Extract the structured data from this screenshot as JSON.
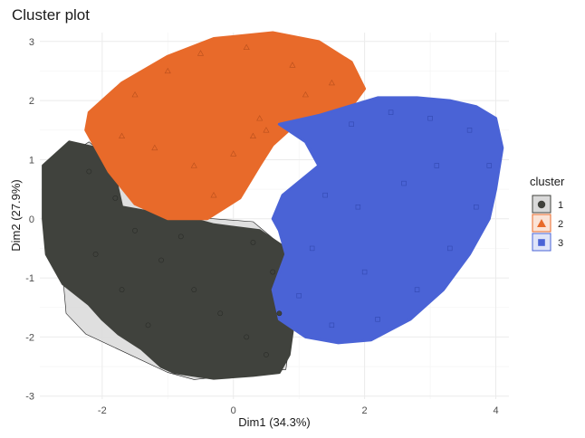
{
  "chart_data": {
    "type": "scatter",
    "title": "Cluster plot",
    "xlabel": "Dim1 (34.3%)",
    "ylabel": "Dim2 (27.9%)",
    "xlim": [
      -2.95,
      4.2
    ],
    "ylim": [
      -3.05,
      3.15
    ],
    "x_ticks": [
      -2,
      0,
      2,
      4
    ],
    "y_ticks": [
      -3,
      -2,
      -1,
      0,
      1,
      2,
      3
    ],
    "grid": true,
    "legend": {
      "title": "cluster",
      "placement": "right"
    },
    "series": [
      {
        "name": "1",
        "color": "#40423d",
        "hull_fill": "#dcdcdc",
        "marker": "circle",
        "hull": [
          [
            -2.55,
            1.05
          ],
          [
            -2.2,
            1.3
          ],
          [
            -0.9,
            0.05
          ],
          [
            0.3,
            -0.05
          ],
          [
            1.0,
            -0.7
          ],
          [
            0.9,
            -1.7
          ],
          [
            0.8,
            -2.55
          ],
          [
            -0.6,
            -2.72
          ],
          [
            -1.0,
            -2.6
          ],
          [
            -2.25,
            -1.95
          ],
          [
            -2.55,
            -1.6
          ],
          [
            -2.7,
            0.3
          ]
        ],
        "region": [
          [
            -2.9,
            0.9
          ],
          [
            -2.5,
            1.3
          ],
          [
            -2.1,
            1.2
          ],
          [
            -1.8,
            0.7
          ],
          [
            -1.7,
            0.2
          ],
          [
            -1.2,
            0.1
          ],
          [
            -0.8,
            0.05
          ],
          [
            -0.3,
            -0.1
          ],
          [
            0.4,
            -0.2
          ],
          [
            0.8,
            -0.5
          ],
          [
            1.0,
            -0.9
          ],
          [
            0.85,
            -1.4
          ],
          [
            0.9,
            -1.9
          ],
          [
            0.85,
            -2.3
          ],
          [
            0.7,
            -2.6
          ],
          [
            0.3,
            -2.65
          ],
          [
            -0.3,
            -2.7
          ],
          [
            -0.9,
            -2.6
          ],
          [
            -1.1,
            -2.5
          ],
          [
            -1.4,
            -2.2
          ],
          [
            -1.75,
            -1.95
          ],
          [
            -2.0,
            -1.7
          ],
          [
            -2.2,
            -1.45
          ],
          [
            -2.6,
            -1.1
          ],
          [
            -2.85,
            -0.6
          ],
          [
            -2.9,
            0.0
          ]
        ],
        "points": [
          [
            -2.2,
            0.8
          ],
          [
            -1.8,
            0.35
          ],
          [
            -1.5,
            -0.2
          ],
          [
            -1.1,
            -0.7
          ],
          [
            -0.6,
            -1.2
          ],
          [
            -0.2,
            -1.6
          ],
          [
            0.2,
            -2.0
          ],
          [
            0.5,
            -2.3
          ],
          [
            -1.3,
            -1.8
          ],
          [
            -2.1,
            -0.6
          ],
          [
            0.6,
            -0.9
          ],
          [
            0.3,
            -0.4
          ],
          [
            -0.8,
            -0.3
          ],
          [
            -1.7,
            -1.2
          ],
          [
            0.7,
            -1.6
          ]
        ]
      },
      {
        "name": "2",
        "color": "#e86a2a",
        "marker": "triangle",
        "region": [
          [
            -2.2,
            1.8
          ],
          [
            -1.7,
            2.3
          ],
          [
            -1.0,
            2.75
          ],
          [
            -0.3,
            3.05
          ],
          [
            0.6,
            3.15
          ],
          [
            1.3,
            3.0
          ],
          [
            1.8,
            2.65
          ],
          [
            2.0,
            2.2
          ],
          [
            1.8,
            1.9
          ],
          [
            1.2,
            1.65
          ],
          [
            0.9,
            1.55
          ],
          [
            0.6,
            1.25
          ],
          [
            0.4,
            0.9
          ],
          [
            0.1,
            0.35
          ],
          [
            -0.4,
            0.0
          ],
          [
            -1.0,
            0.0
          ],
          [
            -1.5,
            0.25
          ],
          [
            -1.9,
            0.8
          ],
          [
            -2.1,
            1.2
          ],
          [
            -2.25,
            1.5
          ]
        ],
        "points": [
          [
            -1.5,
            2.1
          ],
          [
            -1.0,
            2.5
          ],
          [
            -0.5,
            2.8
          ],
          [
            0.2,
            2.9
          ],
          [
            0.9,
            2.6
          ],
          [
            1.5,
            2.3
          ],
          [
            -1.7,
            1.4
          ],
          [
            -1.2,
            1.2
          ],
          [
            -0.6,
            0.9
          ],
          [
            0.0,
            1.1
          ],
          [
            0.5,
            1.5
          ],
          [
            -0.3,
            0.4
          ],
          [
            0.4,
            1.7
          ],
          [
            1.1,
            2.1
          ],
          [
            0.3,
            1.4
          ]
        ]
      },
      {
        "name": "3",
        "color": "#4a63d6",
        "marker": "square",
        "region": [
          [
            0.7,
            1.6
          ],
          [
            1.3,
            1.75
          ],
          [
            1.75,
            1.9
          ],
          [
            2.2,
            2.05
          ],
          [
            2.8,
            2.05
          ],
          [
            3.3,
            2.0
          ],
          [
            3.7,
            1.9
          ],
          [
            4.0,
            1.7
          ],
          [
            4.1,
            1.2
          ],
          [
            4.0,
            0.5
          ],
          [
            3.9,
            0.0
          ],
          [
            3.6,
            -0.6
          ],
          [
            3.2,
            -1.2
          ],
          [
            2.7,
            -1.7
          ],
          [
            2.1,
            -2.05
          ],
          [
            1.6,
            -2.1
          ],
          [
            1.1,
            -2.0
          ],
          [
            0.7,
            -1.7
          ],
          [
            0.6,
            -1.2
          ],
          [
            0.8,
            -0.6
          ],
          [
            0.7,
            -0.2
          ],
          [
            0.6,
            0.0
          ],
          [
            0.75,
            0.4
          ],
          [
            1.3,
            0.9
          ],
          [
            1.1,
            1.3
          ]
        ],
        "points": [
          [
            1.8,
            1.6
          ],
          [
            2.4,
            1.8
          ],
          [
            3.0,
            1.7
          ],
          [
            3.6,
            1.5
          ],
          [
            3.9,
            0.9
          ],
          [
            3.7,
            0.2
          ],
          [
            3.3,
            -0.5
          ],
          [
            2.8,
            -1.2
          ],
          [
            2.2,
            -1.7
          ],
          [
            1.5,
            -1.8
          ],
          [
            1.0,
            -1.3
          ],
          [
            1.2,
            -0.5
          ],
          [
            1.9,
            0.2
          ],
          [
            2.6,
            0.6
          ],
          [
            3.1,
            0.9
          ],
          [
            2.0,
            -0.9
          ],
          [
            1.4,
            0.4
          ]
        ]
      }
    ]
  }
}
